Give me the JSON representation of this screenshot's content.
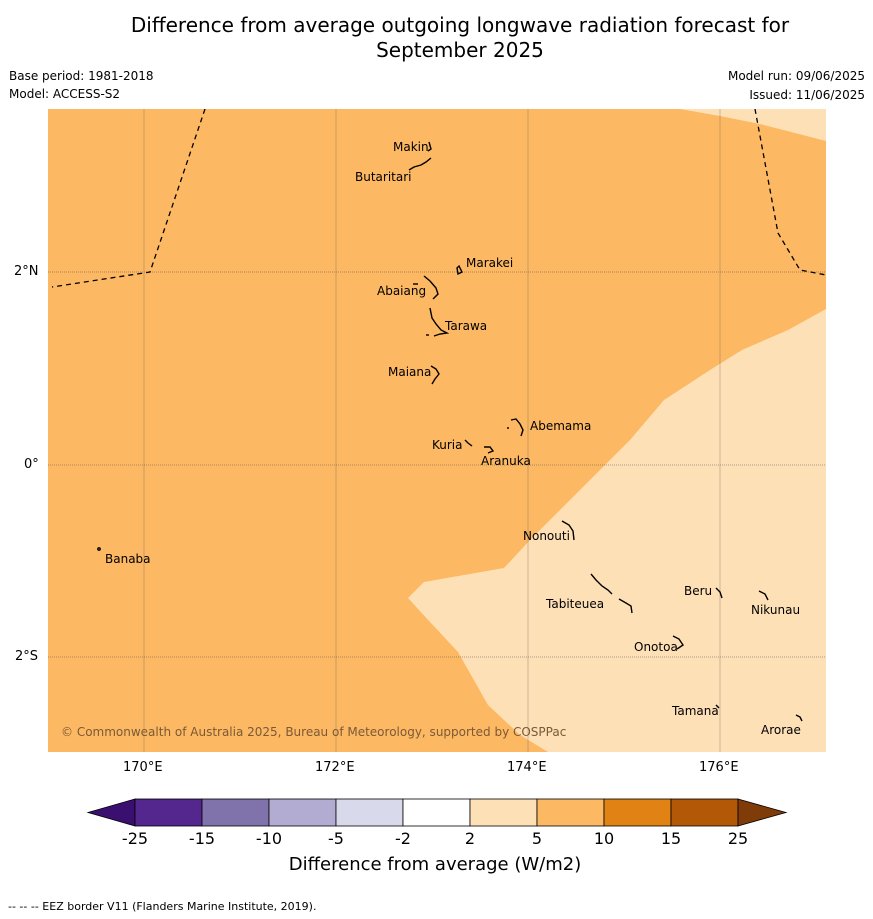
{
  "title_line1": "Difference from average outgoing longwave radiation forecast for",
  "title_line2": "September 2025",
  "base_period": "Base period: 1981-2018",
  "model": "Model: ACCESS-S2",
  "model_run": "Model run: 09/06/2025",
  "issued": "Issued: 11/06/2025",
  "copyright": "© Commonwealth of Australia 2025, Bureau of Meteorology, supported by COSPPac",
  "lon_labels": [
    "170°E",
    "172°E",
    "174°E",
    "176°E"
  ],
  "lat_labels": [
    "2°N",
    "0°",
    "2°S"
  ],
  "places": {
    "makin": "Makin",
    "butaritari": "Butaritari",
    "marakei": "Marakei",
    "abaiang": "Abaiang",
    "tarawa": "Tarawa",
    "maiana": "Maiana",
    "abemama": "Abemama",
    "kuria": "Kuria",
    "aranuka": "Aranuka",
    "nonouti": "Nonouti",
    "banaba": "Banaba",
    "tabiteuea": "Tabiteuea",
    "beru": "Beru",
    "nikunau": "Nikunau",
    "onotoa": "Onotoa",
    "tamana": "Tamana",
    "arorae": "Arorae"
  },
  "colorbar": {
    "title": "Difference from average (W/m2)",
    "ticks": [
      "-25",
      "-15",
      "-10",
      "-5",
      "-2",
      "2",
      "5",
      "10",
      "15",
      "25"
    ],
    "colors": [
      "#3b0f6f",
      "#54278f",
      "#8073ac",
      "#b2abd2",
      "#d8daeb",
      "#ffffff",
      "#fee0b6",
      "#fdb863",
      "#e08214",
      "#b35806",
      "#7f3b08"
    ]
  },
  "map_colors": {
    "band_5_10": "#fdb863",
    "band_2_5": "#fee0b6"
  },
  "footer": "--  --  -- EEZ border V11 (Flanders Marine Institute, 2019)."
}
